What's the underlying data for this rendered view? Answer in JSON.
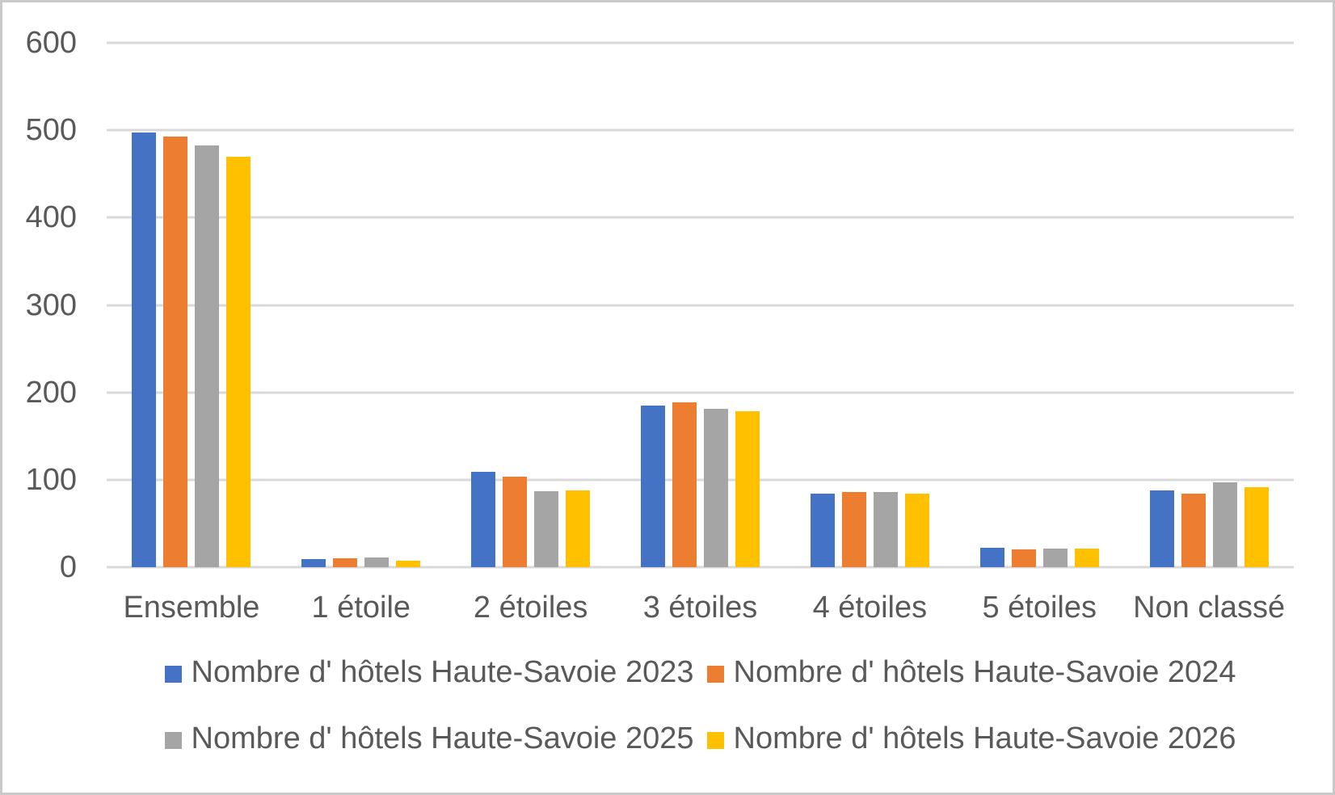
{
  "chart_data": {
    "type": "bar",
    "title": "",
    "categories": [
      "Ensemble",
      "1 étoile",
      "2 étoiles",
      "3 étoiles",
      "4 étoiles",
      "5 étoiles",
      "Non classé"
    ],
    "series": [
      {
        "name": "Nombre d' hôtels Haute-Savoie 2023",
        "color": "#4472C4",
        "values": [
          497,
          9,
          109,
          185,
          84,
          22,
          88
        ]
      },
      {
        "name": "Nombre d' hôtels Haute-Savoie 2024",
        "color": "#ED7D31",
        "values": [
          493,
          10,
          104,
          189,
          86,
          20,
          84
        ]
      },
      {
        "name": "Nombre d' hôtels Haute-Savoie 2025",
        "color": "#A5A5A5",
        "values": [
          483,
          11,
          87,
          181,
          86,
          21,
          97
        ]
      },
      {
        "name": "Nombre d' hôtels Haute-Savoie 2026",
        "color": "#FFC000",
        "values": [
          470,
          7,
          88,
          178,
          84,
          21,
          92
        ]
      }
    ],
    "xlabel": "",
    "ylabel": "",
    "ylim": [
      0,
      600
    ],
    "yticks": [
      0,
      100,
      200,
      300,
      400,
      500,
      600
    ],
    "grid": "horizontal",
    "legend_position": "bottom",
    "legend_rows": 2
  },
  "styles": {
    "text_color": "#595959",
    "gridline_color": "#D9D9D9",
    "background_color": "#FFFFFF",
    "frame_border_color": "#C9C9C9"
  }
}
